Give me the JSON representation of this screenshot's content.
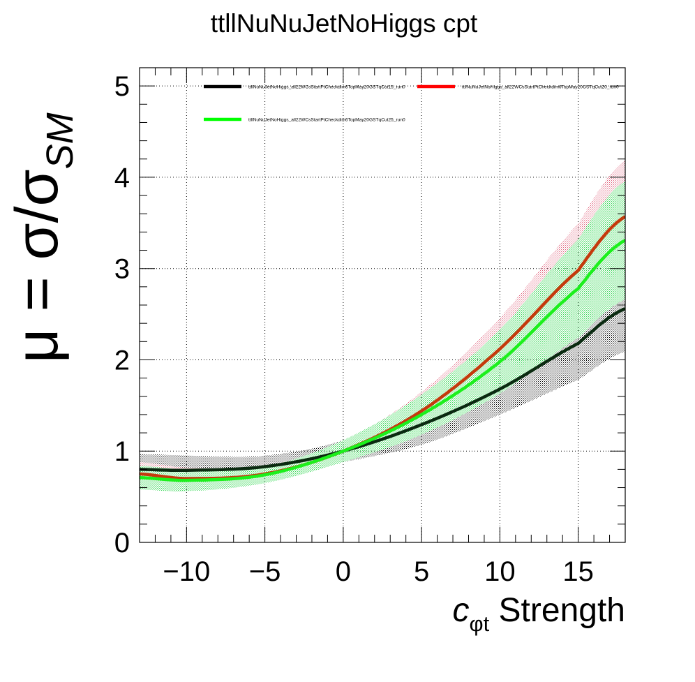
{
  "chart_data": {
    "type": "line",
    "title": "ttllNuNuJetNoHiggs cpt",
    "xlabel": {
      "main": "c",
      "subscript": "φt",
      "suffix": " Strength"
    },
    "ylabel": {
      "prefix": "μ = σ/σ",
      "subscript": "SM"
    },
    "xlim": [
      -13,
      18
    ],
    "ylim": [
      0,
      5.2
    ],
    "x_ticks": [
      -10,
      -5,
      0,
      5,
      10,
      15
    ],
    "x_tick_labels": [
      "−10",
      "−5",
      "0",
      "5",
      "10",
      "15"
    ],
    "y_ticks": [
      0,
      1,
      2,
      3,
      4,
      5
    ],
    "y_tick_labels": [
      "0",
      "1",
      "2",
      "3",
      "4",
      "5"
    ],
    "grid": true,
    "legend_position": "top",
    "series": [
      {
        "name": "ttllNuNuJetNoHiggs_all22WCsStartPtCheckdim6TopMay20GSTqCut15_run0",
        "color": "#000000",
        "x": [
          -13,
          -10,
          -5,
          0,
          5,
          10,
          15,
          18
        ],
        "y": [
          0.8,
          0.79,
          0.83,
          1.0,
          1.29,
          1.68,
          2.18,
          2.56
        ],
        "y_low": [
          0.64,
          0.66,
          0.74,
          0.88,
          1.07,
          1.4,
          1.78,
          2.09
        ],
        "y_high": [
          0.97,
          0.95,
          0.95,
          1.12,
          1.51,
          1.96,
          2.58,
          3.03
        ]
      },
      {
        "name": "ttllNuNuJetNoHiggs_all22WCsStartPtCheckdim6TopMay20GSTqCut20_run0",
        "color": "#ff0000",
        "x": [
          -13,
          -10,
          -5,
          0,
          5,
          10,
          15,
          18
        ],
        "y": [
          0.75,
          0.7,
          0.75,
          1.0,
          1.44,
          2.12,
          2.98,
          3.57
        ],
        "y_low": [
          0.62,
          0.58,
          0.66,
          0.89,
          1.23,
          1.78,
          2.47,
          2.95
        ],
        "y_high": [
          0.88,
          0.82,
          0.84,
          1.11,
          1.65,
          2.46,
          3.49,
          4.19
        ]
      },
      {
        "name": "ttllNuNuJetNoHiggs_all22WCsStartPtCheckdim6TopMay20GSTqCut25_run0",
        "color": "#00ff00",
        "x": [
          -13,
          -10,
          -5,
          0,
          5,
          10,
          15,
          18
        ],
        "y": [
          0.71,
          0.68,
          0.74,
          1.0,
          1.4,
          1.98,
          2.78,
          3.31
        ],
        "y_low": [
          0.58,
          0.56,
          0.65,
          0.88,
          1.18,
          1.63,
          2.24,
          2.66
        ],
        "y_high": [
          0.84,
          0.8,
          0.83,
          1.12,
          1.62,
          2.33,
          3.32,
          3.96
        ]
      }
    ]
  }
}
